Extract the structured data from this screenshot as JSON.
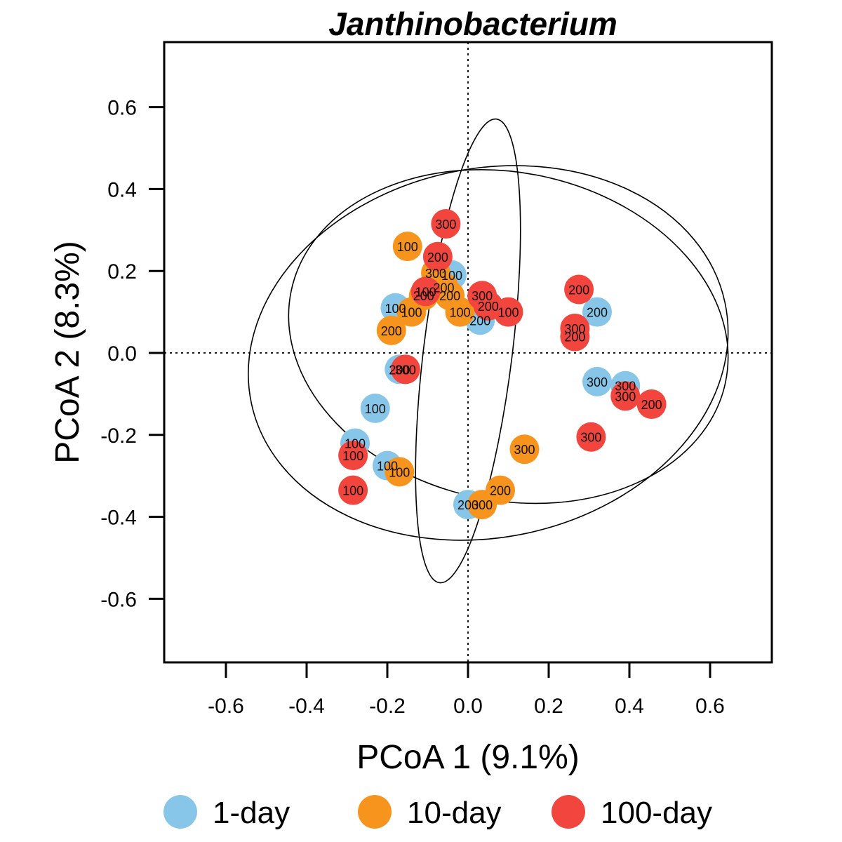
{
  "chart_data": {
    "type": "scatter",
    "title": "Janthinobacterium",
    "xlabel": "PCoA 1 (9.1%)",
    "ylabel": "PCoA 2 (8.3%)",
    "xlim": [
      -0.75,
      0.75
    ],
    "ylim": [
      -0.75,
      0.75
    ],
    "xticks": [
      -0.6,
      -0.4,
      -0.2,
      0.0,
      0.2,
      0.4,
      0.6
    ],
    "yticks": [
      -0.6,
      -0.4,
      -0.2,
      0.0,
      0.2,
      0.4,
      0.6
    ],
    "xtick_labels": [
      "-0.6",
      "-0.4",
      "-0.2",
      "0.0",
      "0.2",
      "0.4",
      "0.6"
    ],
    "ytick_labels": [
      "-0.6",
      "-0.4",
      "-0.2",
      "0.0",
      "0.2",
      "0.4",
      "0.6"
    ],
    "reference_lines": {
      "x": 0,
      "y": 0,
      "style": "dotted"
    },
    "grid": false,
    "legend_position": "bottom",
    "series": [
      {
        "name": "1-day",
        "color": "#87C6E8",
        "points": [
          {
            "x": -0.04,
            "y": 0.19,
            "label": "100"
          },
          {
            "x": -0.18,
            "y": 0.11,
            "label": "100"
          },
          {
            "x": 0.03,
            "y": 0.08,
            "label": "200"
          },
          {
            "x": 0.32,
            "y": 0.1,
            "label": "200"
          },
          {
            "x": -0.17,
            "y": -0.04,
            "label": "200"
          },
          {
            "x": -0.23,
            "y": -0.135,
            "label": "100"
          },
          {
            "x": -0.28,
            "y": -0.22,
            "label": "100"
          },
          {
            "x": -0.2,
            "y": -0.275,
            "label": "100"
          },
          {
            "x": 0.0,
            "y": -0.37,
            "label": "200"
          },
          {
            "x": 0.32,
            "y": -0.07,
            "label": "300"
          },
          {
            "x": 0.39,
            "y": -0.08,
            "label": "300"
          }
        ]
      },
      {
        "name": "10-day",
        "color": "#F7941D",
        "points": [
          {
            "x": -0.15,
            "y": 0.26,
            "label": "100"
          },
          {
            "x": -0.08,
            "y": 0.195,
            "label": "300"
          },
          {
            "x": -0.06,
            "y": 0.16,
            "label": "200"
          },
          {
            "x": -0.11,
            "y": 0.14,
            "label": "200"
          },
          {
            "x": -0.045,
            "y": 0.14,
            "label": "200"
          },
          {
            "x": -0.14,
            "y": 0.1,
            "label": "100"
          },
          {
            "x": -0.02,
            "y": 0.1,
            "label": "100"
          },
          {
            "x": -0.19,
            "y": 0.055,
            "label": "200"
          },
          {
            "x": 0.14,
            "y": -0.235,
            "label": "300"
          },
          {
            "x": -0.17,
            "y": -0.29,
            "label": "100"
          },
          {
            "x": 0.08,
            "y": -0.335,
            "label": "200"
          },
          {
            "x": 0.035,
            "y": -0.37,
            "label": "300"
          }
        ]
      },
      {
        "name": "100-day",
        "color": "#F1453D",
        "points": [
          {
            "x": -0.055,
            "y": 0.315,
            "label": "300"
          },
          {
            "x": -0.075,
            "y": 0.235,
            "label": "200"
          },
          {
            "x": -0.105,
            "y": 0.15,
            "label": "100"
          },
          {
            "x": 0.035,
            "y": 0.14,
            "label": "300"
          },
          {
            "x": 0.05,
            "y": 0.115,
            "label": "200"
          },
          {
            "x": 0.1,
            "y": 0.1,
            "label": "100"
          },
          {
            "x": 0.275,
            "y": 0.155,
            "label": "200"
          },
          {
            "x": 0.265,
            "y": 0.06,
            "label": "300"
          },
          {
            "x": 0.265,
            "y": 0.04,
            "label": "200"
          },
          {
            "x": -0.155,
            "y": -0.04,
            "label": "300"
          },
          {
            "x": 0.39,
            "y": -0.105,
            "label": "300"
          },
          {
            "x": 0.455,
            "y": -0.125,
            "label": "200"
          },
          {
            "x": 0.305,
            "y": -0.205,
            "label": "300"
          },
          {
            "x": -0.285,
            "y": -0.25,
            "label": "100"
          },
          {
            "x": -0.285,
            "y": -0.335,
            "label": "100"
          }
        ]
      }
    ],
    "ellipses": [
      {
        "cx": 0.0,
        "cy": 0.005,
        "rx": 0.11,
        "ry": 0.57,
        "rotation": 7
      },
      {
        "cx": 0.05,
        "cy": 0.0,
        "rx": 0.6,
        "ry": 0.45,
        "rotation": -12
      },
      {
        "cx": 0.1,
        "cy": 0.04,
        "rx": 0.55,
        "ry": 0.4,
        "rotation": 12
      }
    ]
  }
}
